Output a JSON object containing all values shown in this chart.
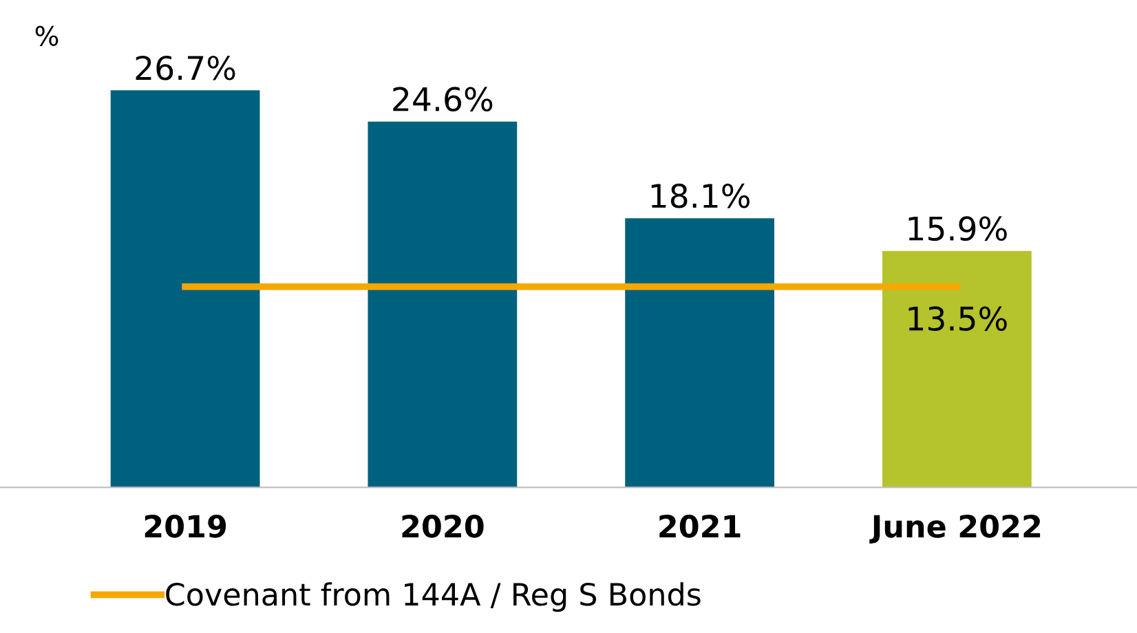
{
  "chart_data": {
    "type": "bar",
    "ylabel": "%",
    "categories": [
      "2019",
      "2020",
      "2021",
      "June 2022"
    ],
    "series": [
      {
        "values": [
          26.7,
          24.6,
          18.1,
          15.9
        ],
        "colors": [
          "#00617f",
          "#00617f",
          "#00617f",
          "#b5c32c"
        ],
        "value_labels": [
          "26.7%",
          "24.6%",
          "18.1%",
          "15.9%"
        ]
      },
      {
        "type": "line",
        "name": "Covenant from 144A / Reg S Bonds",
        "color": "#f5a800",
        "values": [
          13.5,
          13.5,
          13.5,
          13.5
        ],
        "value_labels": [
          null,
          null,
          null,
          "13.5%"
        ]
      }
    ],
    "legend": "bottom",
    "grid": false,
    "marker": "none",
    "line_style": "solid"
  }
}
